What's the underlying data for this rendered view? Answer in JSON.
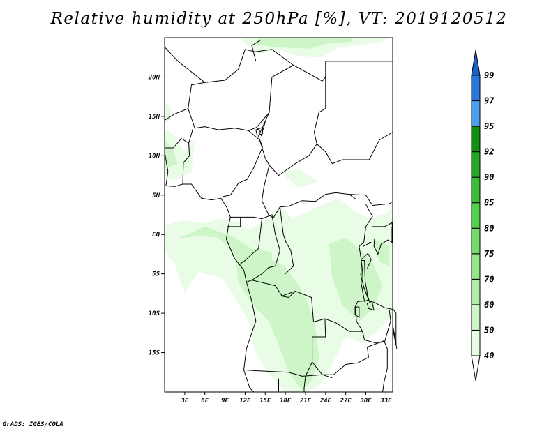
{
  "title": "Relative humidity at 250hPa [%], VT: 2019120512",
  "credit": "GrADS: IGES/COLA",
  "map": {
    "projection": "lat-lon",
    "lon_range": [
      0,
      34
    ],
    "lat_range": [
      -20,
      25
    ],
    "x_ticks": [
      {
        "lon": 3,
        "label": "3E"
      },
      {
        "lon": 6,
        "label": "6E"
      },
      {
        "lon": 9,
        "label": "9E"
      },
      {
        "lon": 12,
        "label": "12E"
      },
      {
        "lon": 15,
        "label": "15E"
      },
      {
        "lon": 18,
        "label": "18E"
      },
      {
        "lon": 21,
        "label": "21E"
      },
      {
        "lon": 24,
        "label": "24E"
      },
      {
        "lon": 27,
        "label": "27E"
      },
      {
        "lon": 30,
        "label": "30E"
      },
      {
        "lon": 33,
        "label": "33E"
      }
    ],
    "y_ticks": [
      {
        "lat": 20,
        "label": "20N"
      },
      {
        "lat": 15,
        "label": "15N"
      },
      {
        "lat": 10,
        "label": "10N"
      },
      {
        "lat": 5,
        "label": "5N"
      },
      {
        "lat": 0,
        "label": "EQ"
      },
      {
        "lat": -5,
        "label": "5S"
      },
      {
        "lat": -10,
        "label": "10S"
      },
      {
        "lat": -15,
        "label": "15S"
      }
    ]
  },
  "colorbar": {
    "levels": [
      "40",
      "50",
      "60",
      "70",
      "75",
      "80",
      "85",
      "90",
      "92",
      "95",
      "97",
      "99"
    ],
    "colors": [
      "#ffffff",
      "#e8fce6",
      "#cdf5c8",
      "#b0eeaa",
      "#93e68a",
      "#74dc6c",
      "#55d04c",
      "#3cbc38",
      "#27a625",
      "#138f12",
      "#4c9fee",
      "#2878dc",
      "#1e5fc8"
    ]
  },
  "chart_data": {
    "type": "heatmap",
    "title": "Relative humidity at 250hPa [%], VT: 2019120512",
    "variable": "Relative humidity",
    "units": "%",
    "level": "250hPa",
    "valid_time": "2019120512",
    "xlabel": "",
    "ylabel": "",
    "x_range": [
      0,
      34
    ],
    "y_range": [
      -20,
      25
    ],
    "shaded_levels": [
      40,
      50,
      60,
      70,
      75,
      80,
      85,
      90,
      92,
      95,
      97,
      99
    ],
    "regions": [
      {
        "area": "northern edge near 24N, 13E-29E",
        "rh_range": [
          40,
          60
        ]
      },
      {
        "area": "west coast near 9-12N, 0-3E",
        "rh_range": [
          40,
          60
        ]
      },
      {
        "area": "equatorial band 2N to 5S, 0-33E",
        "rh_range": [
          40,
          60
        ]
      },
      {
        "area": "southern Congo / Angola 5S-20S, 12E-26E",
        "rh_range": [
          40,
          60
        ]
      },
      {
        "area": "east, 2S-10S near 28E-33E",
        "rh_range": [
          40,
          60
        ]
      }
    ]
  }
}
